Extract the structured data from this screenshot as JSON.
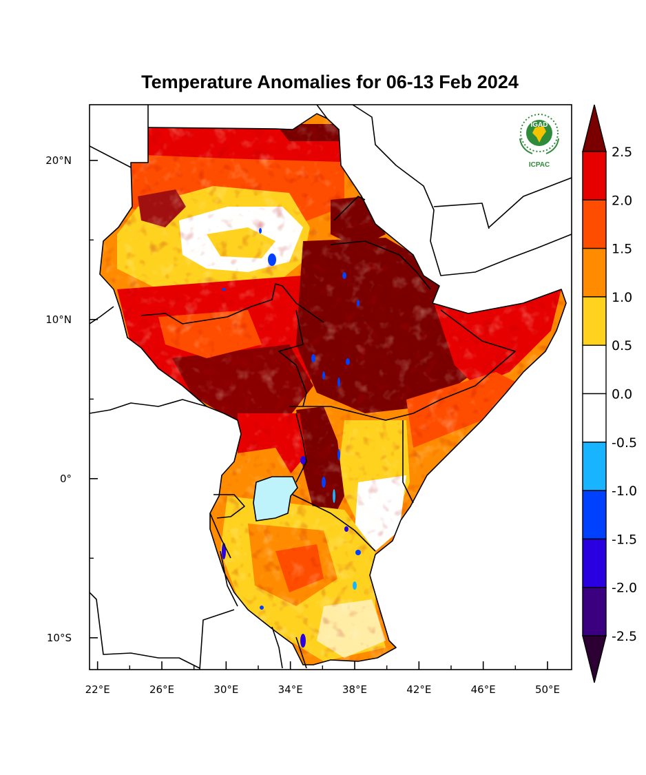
{
  "title": "Temperature Anomalies for 06-13 Feb 2024",
  "map": {
    "region": "East Africa",
    "lon_range": [
      21.5,
      51.5
    ],
    "lat_range": [
      -12,
      23.5
    ],
    "lat_ticks": [
      {
        "lat": 20,
        "label": "20°N"
      },
      {
        "lat": 10,
        "label": "10°N"
      },
      {
        "lat": 0,
        "label": "0°"
      },
      {
        "lat": -10,
        "label": "10°S"
      }
    ],
    "lat_minor_ticks": [
      15,
      5,
      -5
    ],
    "lon_ticks": [
      {
        "lon": 22,
        "label": "22°E"
      },
      {
        "lon": 26,
        "label": "26°E"
      },
      {
        "lon": 30,
        "label": "30°E"
      },
      {
        "lon": 34,
        "label": "34°E"
      },
      {
        "lon": 38,
        "label": "38°E"
      },
      {
        "lon": 42,
        "label": "42°E"
      },
      {
        "lon": 46,
        "label": "46°E"
      },
      {
        "lon": 50,
        "label": "50°E"
      }
    ],
    "lon_minor_ticks": [
      24,
      28,
      32,
      36,
      40,
      44,
      48
    ]
  },
  "legend": {
    "labels": [
      "2.5",
      "2.0",
      "1.5",
      "1.0",
      "0.5",
      "0.0",
      "-0.5",
      "-1.0",
      "-1.5",
      "-2.0",
      "-2.5"
    ],
    "colors_top_to_bottom": [
      "#7a0000",
      "#e60000",
      "#ff4d00",
      "#ff8c00",
      "#ffd21f",
      "#ffffff",
      "#ffffff",
      "#19b4ff",
      "#0040ff",
      "#2a00e0",
      "#3a0080",
      "#2c0033"
    ]
  },
  "logo": {
    "top_text": "IGAD",
    "bottom_text": "ICPAC",
    "color": "#2e8b3a",
    "accent": "#f5c400"
  }
}
